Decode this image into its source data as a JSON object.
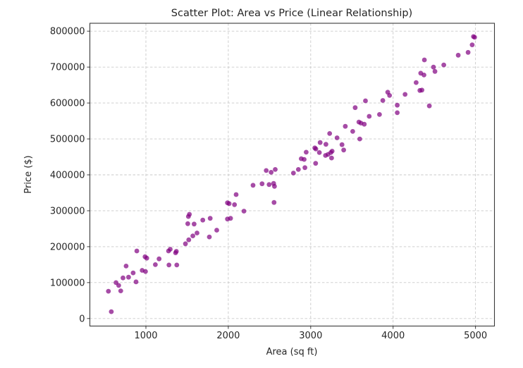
{
  "figure": {
    "background_color": "#ffffff",
    "text_color": "#262626",
    "spine_color": "#3a3a3a",
    "grid_color": "#c9c9c9"
  },
  "chart_data": {
    "type": "scatter",
    "title": "Scatter Plot: Area vs Price (Linear Relationship)",
    "xlabel": "Area (sq ft)",
    "ylabel": "Price ($)",
    "legend": "none",
    "grid": true,
    "grid_style": "dashed",
    "marker_color": "#800080",
    "marker_opacity": 0.7,
    "marker_radius": 3.4,
    "xlim": [
      320,
      5230
    ],
    "ylim": [
      -21000,
      822000
    ],
    "x_ticks": [
      1000,
      2000,
      3000,
      4000,
      5000
    ],
    "y_ticks": [
      0,
      100000,
      200000,
      300000,
      400000,
      500000,
      600000,
      700000,
      800000
    ],
    "points": [
      [
        580,
        19000
      ],
      [
        545,
        76000
      ],
      [
        637,
        100000
      ],
      [
        670,
        92000
      ],
      [
        695,
        77000
      ],
      [
        722,
        113000
      ],
      [
        790,
        115000
      ],
      [
        760,
        146000
      ],
      [
        845,
        127000
      ],
      [
        880,
        102000
      ],
      [
        890,
        188000
      ],
      [
        955,
        134000
      ],
      [
        995,
        131000
      ],
      [
        990,
        172000
      ],
      [
        1010,
        168000
      ],
      [
        1115,
        150000
      ],
      [
        1160,
        166000
      ],
      [
        1280,
        149000
      ],
      [
        1375,
        149000
      ],
      [
        1275,
        188000
      ],
      [
        1295,
        193000
      ],
      [
        1360,
        183000
      ],
      [
        1370,
        187000
      ],
      [
        1480,
        208000
      ],
      [
        1520,
        219000
      ],
      [
        1570,
        230000
      ],
      [
        1620,
        238000
      ],
      [
        1508,
        264000
      ],
      [
        1585,
        263000
      ],
      [
        1516,
        284000
      ],
      [
        1528,
        290000
      ],
      [
        1690,
        274000
      ],
      [
        1780,
        279000
      ],
      [
        1860,
        246000
      ],
      [
        1770,
        227000
      ],
      [
        1990,
        322000
      ],
      [
        2010,
        320000
      ],
      [
        2075,
        317000
      ],
      [
        1990,
        277000
      ],
      [
        2027,
        279000
      ],
      [
        2095,
        345000
      ],
      [
        2190,
        299000
      ],
      [
        2300,
        371000
      ],
      [
        2410,
        375000
      ],
      [
        2460,
        412000
      ],
      [
        2495,
        373000
      ],
      [
        2520,
        407000
      ],
      [
        2550,
        376000
      ],
      [
        2560,
        368000
      ],
      [
        2570,
        415000
      ],
      [
        2555,
        323000
      ],
      [
        2790,
        405000
      ],
      [
        2850,
        415000
      ],
      [
        2930,
        420000
      ],
      [
        2885,
        445000
      ],
      [
        2920,
        443000
      ],
      [
        2945,
        463000
      ],
      [
        3060,
        432000
      ],
      [
        3050,
        475000
      ],
      [
        3062,
        472000
      ],
      [
        3105,
        462000
      ],
      [
        3115,
        490000
      ],
      [
        3185,
        485000
      ],
      [
        3180,
        454000
      ],
      [
        3210,
        457000
      ],
      [
        3230,
        515000
      ],
      [
        3245,
        462000
      ],
      [
        3260,
        466000
      ],
      [
        3253,
        447000
      ],
      [
        3320,
        503000
      ],
      [
        3380,
        484000
      ],
      [
        3400,
        469000
      ],
      [
        3420,
        535000
      ],
      [
        3510,
        521000
      ],
      [
        3540,
        587000
      ],
      [
        3585,
        547000
      ],
      [
        3610,
        544000
      ],
      [
        3650,
        541000
      ],
      [
        3595,
        500000
      ],
      [
        3710,
        563000
      ],
      [
        3665,
        606000
      ],
      [
        3835,
        568000
      ],
      [
        3875,
        607000
      ],
      [
        3935,
        630000
      ],
      [
        3957,
        621000
      ],
      [
        4050,
        594000
      ],
      [
        4050,
        573000
      ],
      [
        4145,
        624000
      ],
      [
        4280,
        657000
      ],
      [
        4325,
        635000
      ],
      [
        4350,
        636000
      ],
      [
        4335,
        683000
      ],
      [
        4375,
        678000
      ],
      [
        4380,
        720000
      ],
      [
        4440,
        592000
      ],
      [
        4490,
        700000
      ],
      [
        4508,
        688000
      ],
      [
        4615,
        706000
      ],
      [
        4790,
        733000
      ],
      [
        4910,
        741000
      ],
      [
        4960,
        762000
      ],
      [
        4975,
        785000
      ],
      [
        4990,
        783000
      ]
    ]
  }
}
